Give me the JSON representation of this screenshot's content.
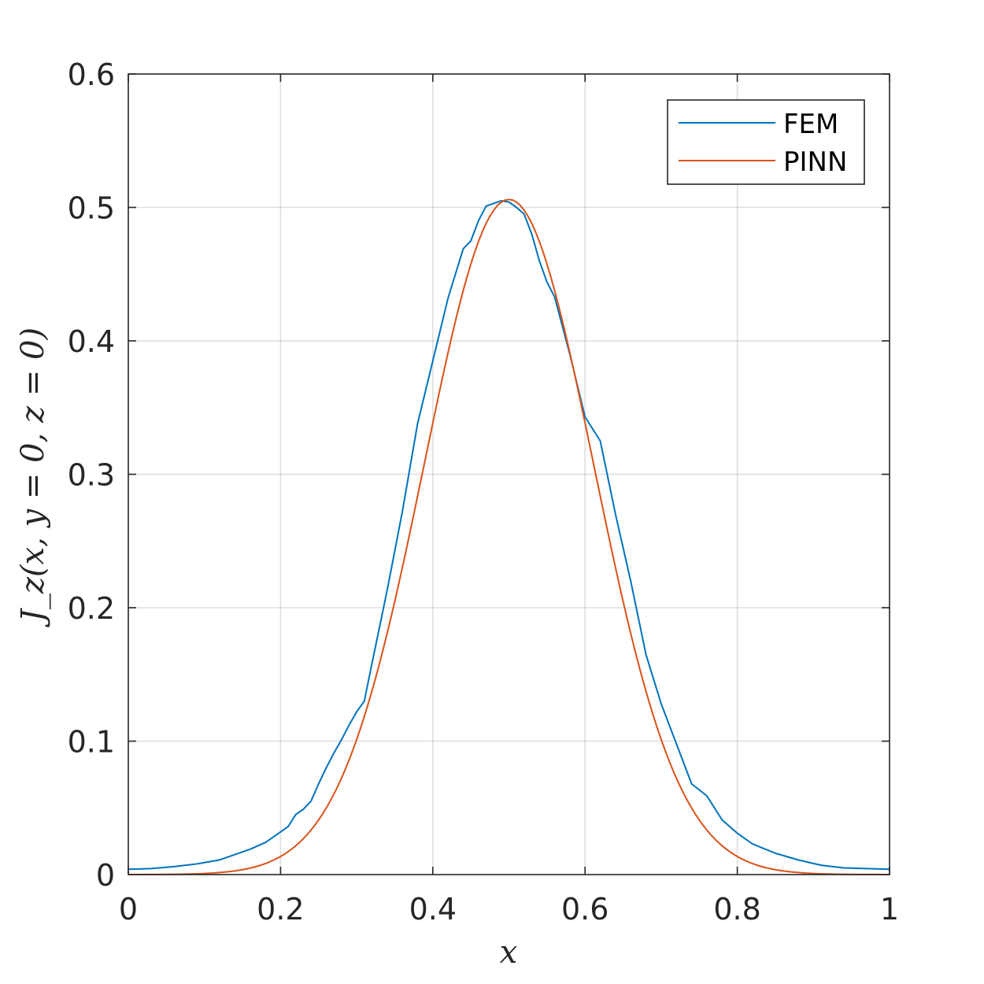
{
  "chart_data": {
    "type": "line",
    "xlabel": "x",
    "ylabel": "J_z(x, y = 0, z = 0)",
    "xlim": [
      0,
      1
    ],
    "ylim": [
      0,
      0.6
    ],
    "xticks": [
      "0",
      "0.2",
      "0.4",
      "0.6",
      "0.8",
      "1"
    ],
    "yticks": [
      "0",
      "0.1",
      "0.2",
      "0.3",
      "0.4",
      "0.5",
      "0.6"
    ],
    "grid": true,
    "legend_position": "top-right",
    "series": [
      {
        "name": "FEM",
        "color": "#0072BD",
        "x": [
          0,
          0.03,
          0.06,
          0.09,
          0.12,
          0.14,
          0.16,
          0.18,
          0.2,
          0.21,
          0.22,
          0.23,
          0.24,
          0.25,
          0.26,
          0.27,
          0.28,
          0.29,
          0.3,
          0.31,
          0.32,
          0.34,
          0.36,
          0.38,
          0.4,
          0.42,
          0.44,
          0.45,
          0.46,
          0.47,
          0.48,
          0.49,
          0.5,
          0.51,
          0.52,
          0.53,
          0.54,
          0.55,
          0.56,
          0.58,
          0.6,
          0.62,
          0.64,
          0.66,
          0.68,
          0.7,
          0.72,
          0.74,
          0.76,
          0.78,
          0.8,
          0.82,
          0.85,
          0.88,
          0.91,
          0.94,
          0.97,
          1.0
        ],
        "y": [
          0.004,
          0.0045,
          0.006,
          0.008,
          0.011,
          0.015,
          0.019,
          0.024,
          0.032,
          0.036,
          0.045,
          0.049,
          0.055,
          0.068,
          0.08,
          0.091,
          0.101,
          0.112,
          0.122,
          0.13,
          0.158,
          0.213,
          0.272,
          0.338,
          0.385,
          0.432,
          0.469,
          0.475,
          0.49,
          0.501,
          0.503,
          0.505,
          0.504,
          0.5,
          0.495,
          0.48,
          0.46,
          0.444,
          0.433,
          0.39,
          0.343,
          0.325,
          0.27,
          0.22,
          0.165,
          0.128,
          0.098,
          0.068,
          0.059,
          0.041,
          0.031,
          0.023,
          0.016,
          0.011,
          0.007,
          0.005,
          0.0045,
          0.004
        ]
      },
      {
        "name": "PINN",
        "color": "#D95319",
        "model": "gaussian",
        "peak": 0.506,
        "center": 0.5,
        "sigma": 0.1115
      }
    ]
  }
}
